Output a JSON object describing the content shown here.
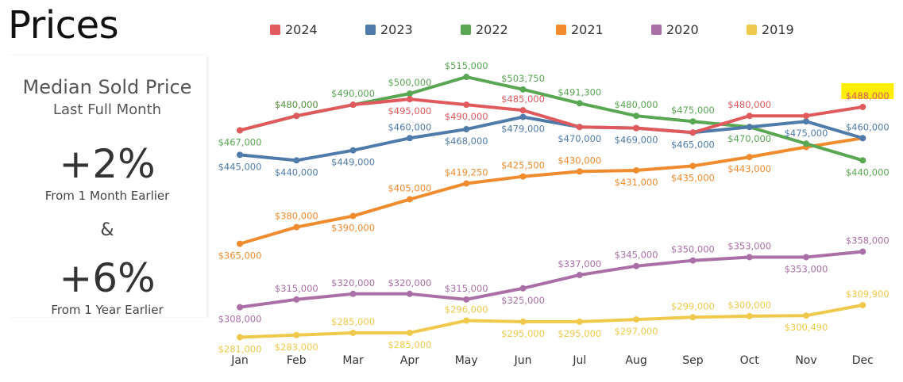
{
  "page": {
    "title": "Prices"
  },
  "kpi": {
    "heading": "Median Sold Price",
    "subheading": "Last Full Month",
    "month_change": "+2%",
    "month_label": "From 1 Month Earlier",
    "ampersand": "&",
    "year_change": "+6%",
    "year_label": "From 1 Year Earlier"
  },
  "chart_data": {
    "type": "line",
    "title": "",
    "xlabel": "",
    "ylabel": "",
    "grid": false,
    "legend_position": "top",
    "categories": [
      "Jan",
      "Feb",
      "Mar",
      "Apr",
      "May",
      "Jun",
      "Jul",
      "Aug",
      "Sep",
      "Oct",
      "Nov",
      "Dec"
    ],
    "series": [
      {
        "name": "2024",
        "color": "#e05a5d",
        "values": [
          467000,
          480000,
          490000,
          495000,
          490000,
          485000,
          470000,
          469000,
          465000,
          480000,
          480000,
          488000
        ],
        "labels": [
          "",
          "$480,000",
          "",
          "$495,000",
          "$490,000",
          "$485,000",
          "",
          "",
          "",
          "$480,000",
          "",
          "$488,000"
        ]
      },
      {
        "name": "2023",
        "color": "#4f7bab",
        "values": [
          445000,
          440000,
          449000,
          460000,
          468000,
          479000,
          470000,
          469000,
          465000,
          470000,
          475000,
          460000
        ],
        "labels": [
          "$445,000",
          "$440,000",
          "$449,000",
          "$460,000",
          "$468,000",
          "$479,000",
          "$470,000",
          "$469,000",
          "$465,000",
          "",
          "$475,000",
          "$460,000"
        ]
      },
      {
        "name": "2022",
        "color": "#59a653",
        "values": [
          467000,
          480000,
          490000,
          500000,
          515000,
          503750,
          491300,
          480000,
          475000,
          470000,
          455000,
          440000
        ],
        "labels": [
          "$467,000",
          "$480,000",
          "$490,000",
          "$500,000",
          "$515,000",
          "$503,750",
          "$491,300",
          "$480,000",
          "$475,000",
          "$470,000",
          "",
          "$440,000"
        ]
      },
      {
        "name": "2021",
        "color": "#f08b2e",
        "values": [
          365000,
          380000,
          390000,
          405000,
          419250,
          425500,
          430000,
          431000,
          435000,
          443000,
          452000,
          460000
        ],
        "labels": [
          "$365,000",
          "$380,000",
          "$390,000",
          "$405,000",
          "$419,250",
          "$425,500",
          "$430,000",
          "$431,000",
          "$435,000",
          "$443,000",
          "",
          ""
        ]
      },
      {
        "name": "2020",
        "color": "#a96fa6",
        "values": [
          308000,
          315000,
          320000,
          320000,
          315000,
          325000,
          337000,
          345000,
          350000,
          353000,
          353000,
          358000
        ],
        "labels": [
          "$308,000",
          "$315,000",
          "$320,000",
          "$320,000",
          "$315,000",
          "$325,000",
          "$337,000",
          "$345,000",
          "$350,000",
          "$353,000",
          "$353,000",
          "$358,000"
        ]
      },
      {
        "name": "2019",
        "color": "#efc94c",
        "values": [
          281000,
          283000,
          285000,
          285000,
          296000,
          295000,
          295000,
          297000,
          299000,
          300000,
          300490,
          309900
        ],
        "labels": [
          "$281,000",
          "$283,000",
          "$285,000",
          "$285,000",
          "$296,000",
          "$295,000",
          "$295,000",
          "$297,000",
          "$299,000",
          "$300,000",
          "$300,490",
          "$309,900"
        ]
      }
    ],
    "highlight": {
      "series": "2024",
      "index": 11,
      "color": "#ffee00"
    },
    "ylim": [
      270000,
      530000
    ]
  }
}
